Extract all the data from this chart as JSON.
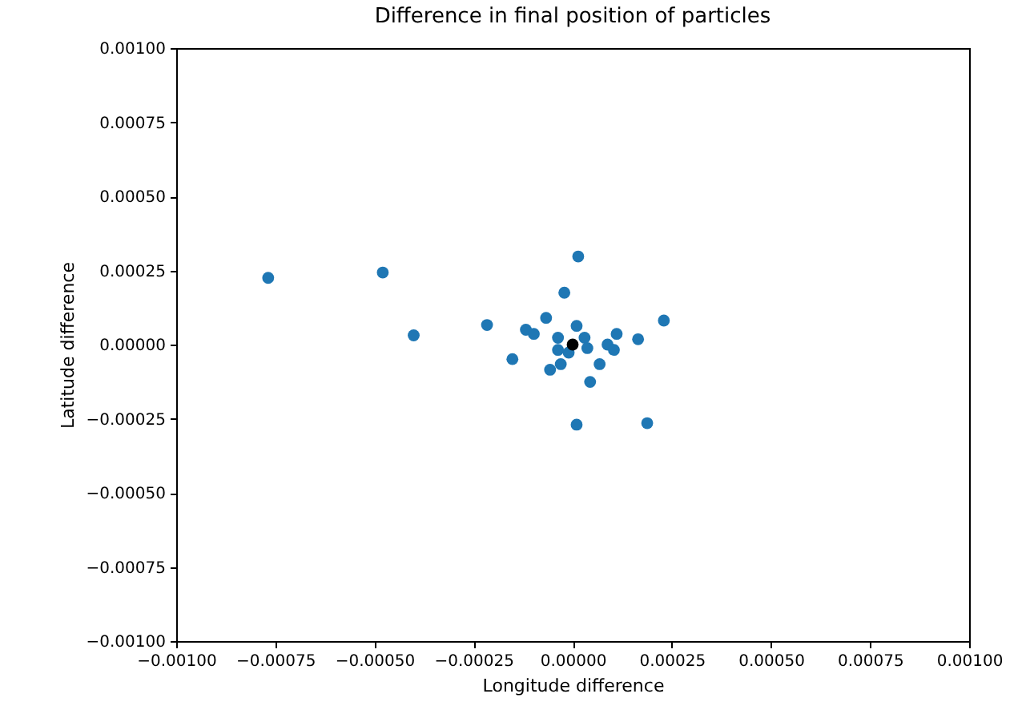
{
  "chart_data": {
    "type": "scatter",
    "title": "Difference in final position of particles",
    "xlabel": "Longitude difference",
    "ylabel": "Latitude difference",
    "marker": "circle",
    "grid": false,
    "xlim": [
      -0.001,
      0.001
    ],
    "xticks": [
      {
        "value": -0.001,
        "label": "−0.00100"
      },
      {
        "value": -0.00075,
        "label": "−0.00075"
      },
      {
        "value": -0.0005,
        "label": "−0.00050"
      },
      {
        "value": -0.00025,
        "label": "−0.00025"
      },
      {
        "value": 0,
        "label": "0.00000"
      },
      {
        "value": 0.00025,
        "label": "0.00025"
      },
      {
        "value": 0.0005,
        "label": "0.00050"
      },
      {
        "value": 0.00075,
        "label": "0.00075"
      },
      {
        "value": 0.001,
        "label": "0.00100"
      }
    ],
    "ylim": [
      -0.001,
      0.001
    ],
    "yticks": [
      {
        "value": -0.001,
        "label": "−0.00100"
      },
      {
        "value": -0.00075,
        "label": "−0.00075"
      },
      {
        "value": -0.0005,
        "label": "−0.00050"
      },
      {
        "value": -0.00025,
        "label": "−0.00025"
      },
      {
        "value": 0,
        "label": "0.00000"
      },
      {
        "value": 0.00025,
        "label": "0.00025"
      },
      {
        "value": 0.0005,
        "label": "0.00050"
      },
      {
        "value": 0.00075,
        "label": "0.00075"
      },
      {
        "value": 0.001,
        "label": "0.00100"
      }
    ],
    "series": [
      {
        "color": "#1f77b4",
        "x": [
          -0.000768,
          -0.000479,
          -0.000401,
          -0.000216,
          -0.000152,
          -0.000118,
          -9.8e-05,
          -6.7e-05,
          -5.7e-05,
          -3.7e-05,
          -3.7e-05,
          -3e-05,
          -2.1e-05,
          -1e-05,
          1e-05,
          1.4e-05,
          3e-05,
          3.7e-05,
          4.4e-05,
          6.8e-05,
          8.8e-05,
          0.000104,
          0.000111,
          0.000165,
          0.00023,
          1e-05,
          0.000188
        ],
        "values": [
          0.000225,
          0.000243,
          3.1e-05,
          6.6e-05,
          -4.9e-05,
          5e-05,
          3.6e-05,
          9e-05,
          -8.5e-05,
          2.3e-05,
          -1.8e-05,
          -6.6e-05,
          0.000175,
          -2.7e-05,
          6.3e-05,
          0.000297,
          2.3e-05,
          -1.2e-05,
          -0.000126,
          -6.6e-05,
          0,
          -1.8e-05,
          3.6e-05,
          1.8e-05,
          8.1e-05,
          -0.00027,
          -0.000265
        ]
      },
      {
        "color": "#000000",
        "x": [
          0
        ],
        "values": [
          0
        ]
      }
    ]
  }
}
